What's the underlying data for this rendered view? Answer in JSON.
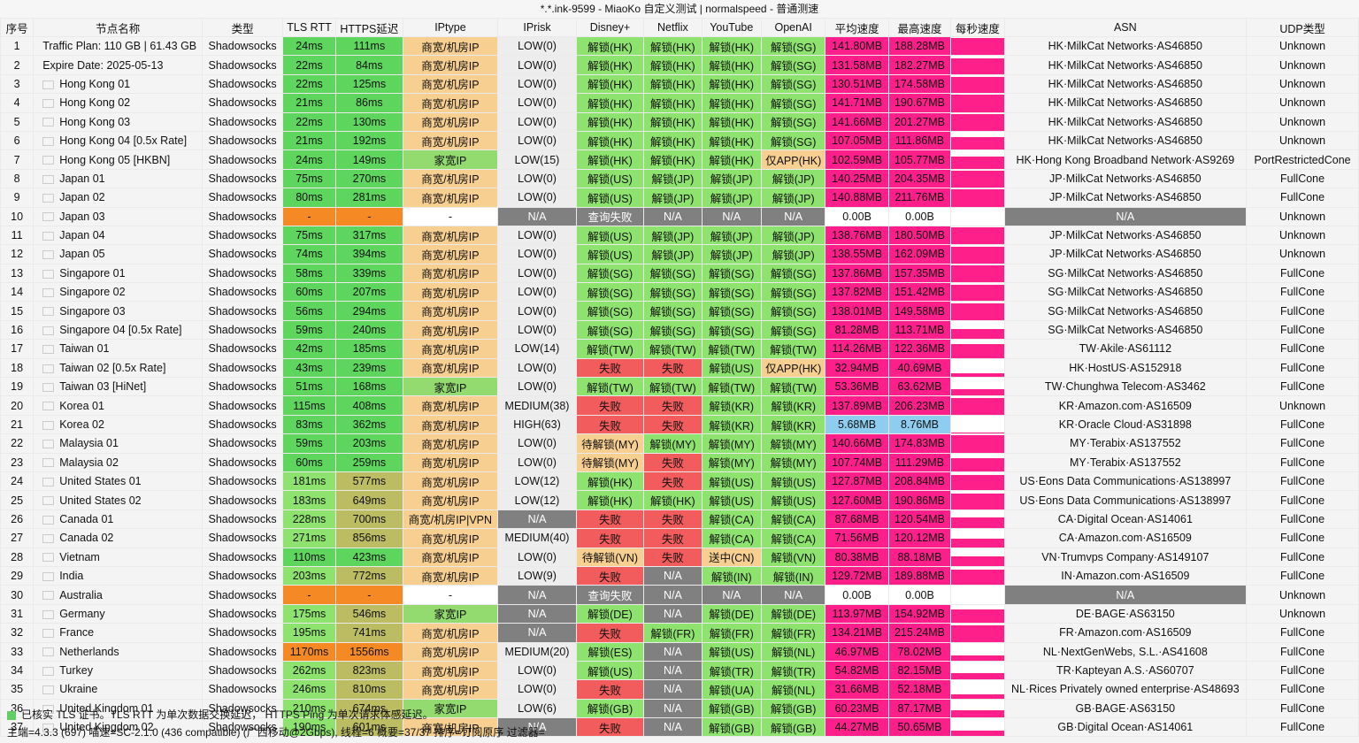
{
  "title": "*.*.ink-9599 - MiaoKo 自定义测试 | normalspeed - 普通测速",
  "columns": [
    "序号",
    "节点名称",
    "类型",
    "TLS RTT",
    "HTTPS延迟",
    "IPtype",
    "IPrisk",
    "Disney+",
    "Netflix",
    "YouTube",
    "OpenAI",
    "平均速度",
    "最高速度",
    "每秒速度",
    "ASN",
    "UDP类型"
  ],
  "rows": [
    {
      "n": "1",
      "name": "Traffic Plan: 110 GB | 61.43 GB",
      "type": "Shadowsocks",
      "tls": "24ms",
      "https": "111ms",
      "iptype": "商宽/机房IP",
      "iprisk": "LOW(0)",
      "disney": "解锁(HK)",
      "netflix": "解锁(HK)",
      "youtube": "解锁(HK)",
      "openai": "解锁(SG)",
      "avg": "141.80MB",
      "max": "188.28MB",
      "asn": "HK·MilkCat Networks·AS46850",
      "udp": "Unknown"
    },
    {
      "n": "2",
      "name": "Expire Date: 2025-05-13",
      "type": "Shadowsocks",
      "tls": "22ms",
      "https": "84ms",
      "iptype": "商宽/机房IP",
      "iprisk": "LOW(0)",
      "disney": "解锁(HK)",
      "netflix": "解锁(HK)",
      "youtube": "解锁(HK)",
      "openai": "解锁(SG)",
      "avg": "131.58MB",
      "max": "182.27MB",
      "asn": "HK·MilkCat Networks·AS46850",
      "udp": "Unknown"
    },
    {
      "n": "3",
      "name": "Hong Kong 01",
      "type": "Shadowsocks",
      "tls": "22ms",
      "https": "125ms",
      "iptype": "商宽/机房IP",
      "iprisk": "LOW(0)",
      "disney": "解锁(HK)",
      "netflix": "解锁(HK)",
      "youtube": "解锁(HK)",
      "openai": "解锁(SG)",
      "avg": "130.51MB",
      "max": "174.58MB",
      "asn": "HK·MilkCat Networks·AS46850",
      "udp": "Unknown"
    },
    {
      "n": "4",
      "name": "Hong Kong 02",
      "type": "Shadowsocks",
      "tls": "21ms",
      "https": "86ms",
      "iptype": "商宽/机房IP",
      "iprisk": "LOW(0)",
      "disney": "解锁(HK)",
      "netflix": "解锁(HK)",
      "youtube": "解锁(HK)",
      "openai": "解锁(SG)",
      "avg": "141.71MB",
      "max": "190.67MB",
      "asn": "HK·MilkCat Networks·AS46850",
      "udp": "Unknown"
    },
    {
      "n": "5",
      "name": "Hong Kong 03",
      "type": "Shadowsocks",
      "tls": "22ms",
      "https": "130ms",
      "iptype": "商宽/机房IP",
      "iprisk": "LOW(0)",
      "disney": "解锁(HK)",
      "netflix": "解锁(HK)",
      "youtube": "解锁(HK)",
      "openai": "解锁(SG)",
      "avg": "141.66MB",
      "max": "201.27MB",
      "asn": "HK·MilkCat Networks·AS46850",
      "udp": "Unknown"
    },
    {
      "n": "6",
      "name": "Hong Kong 04 [0.5x Rate]",
      "type": "Shadowsocks",
      "tls": "21ms",
      "https": "192ms",
      "iptype": "商宽/机房IP",
      "iprisk": "LOW(0)",
      "disney": "解锁(HK)",
      "netflix": "解锁(HK)",
      "youtube": "解锁(HK)",
      "openai": "解锁(SG)",
      "avg": "107.05MB",
      "max": "111.86MB",
      "asn": "HK·MilkCat Networks·AS46850",
      "udp": "Unknown"
    },
    {
      "n": "7",
      "name": "Hong Kong 05 [HKBN]",
      "type": "Shadowsocks",
      "tls": "24ms",
      "https": "149ms",
      "iptype": "家宽IP",
      "iprisk": "LOW(15)",
      "disney": "解锁(HK)",
      "netflix": "解锁(HK)",
      "youtube": "解锁(HK)",
      "openai": "仅APP(HK)",
      "avg": "102.59MB",
      "max": "105.77MB",
      "asn": "HK·Hong Kong Broadband Network·AS9269",
      "udp": "PortRestrictedCone"
    },
    {
      "n": "8",
      "name": "Japan 01",
      "type": "Shadowsocks",
      "tls": "75ms",
      "https": "270ms",
      "iptype": "商宽/机房IP",
      "iprisk": "LOW(0)",
      "disney": "解锁(US)",
      "netflix": "解锁(JP)",
      "youtube": "解锁(JP)",
      "openai": "解锁(JP)",
      "avg": "140.25MB",
      "max": "204.35MB",
      "asn": "JP·MilkCat Networks·AS46850",
      "udp": "FullCone"
    },
    {
      "n": "9",
      "name": "Japan 02",
      "type": "Shadowsocks",
      "tls": "80ms",
      "https": "281ms",
      "iptype": "商宽/机房IP",
      "iprisk": "LOW(0)",
      "disney": "解锁(US)",
      "netflix": "解锁(JP)",
      "youtube": "解锁(JP)",
      "openai": "解锁(JP)",
      "avg": "140.88MB",
      "max": "211.76MB",
      "asn": "JP·MilkCat Networks·AS46850",
      "udp": "FullCone"
    },
    {
      "n": "10",
      "name": "Japan 03",
      "type": "Shadowsocks",
      "tls": "-",
      "https": "-",
      "iptype": "-",
      "iprisk": "N/A",
      "disney": "查询失败",
      "netflix": "N/A",
      "youtube": "N/A",
      "openai": "N/A",
      "avg": "0.00B",
      "max": "0.00B",
      "asn": "N/A",
      "udp": "Unknown"
    },
    {
      "n": "11",
      "name": "Japan 04",
      "type": "Shadowsocks",
      "tls": "75ms",
      "https": "317ms",
      "iptype": "商宽/机房IP",
      "iprisk": "LOW(0)",
      "disney": "解锁(US)",
      "netflix": "解锁(JP)",
      "youtube": "解锁(JP)",
      "openai": "解锁(JP)",
      "avg": "138.76MB",
      "max": "180.50MB",
      "asn": "JP·MilkCat Networks·AS46850",
      "udp": "Unknown"
    },
    {
      "n": "12",
      "name": "Japan 05",
      "type": "Shadowsocks",
      "tls": "74ms",
      "https": "394ms",
      "iptype": "商宽/机房IP",
      "iprisk": "LOW(0)",
      "disney": "解锁(US)",
      "netflix": "解锁(JP)",
      "youtube": "解锁(JP)",
      "openai": "解锁(JP)",
      "avg": "138.55MB",
      "max": "162.09MB",
      "asn": "JP·MilkCat Networks·AS46850",
      "udp": "Unknown"
    },
    {
      "n": "13",
      "name": "Singapore 01",
      "type": "Shadowsocks",
      "tls": "58ms",
      "https": "339ms",
      "iptype": "商宽/机房IP",
      "iprisk": "LOW(0)",
      "disney": "解锁(SG)",
      "netflix": "解锁(SG)",
      "youtube": "解锁(SG)",
      "openai": "解锁(SG)",
      "avg": "137.86MB",
      "max": "157.35MB",
      "asn": "SG·MilkCat Networks·AS46850",
      "udp": "FullCone"
    },
    {
      "n": "14",
      "name": "Singapore 02",
      "type": "Shadowsocks",
      "tls": "60ms",
      "https": "207ms",
      "iptype": "商宽/机房IP",
      "iprisk": "LOW(0)",
      "disney": "解锁(SG)",
      "netflix": "解锁(SG)",
      "youtube": "解锁(SG)",
      "openai": "解锁(SG)",
      "avg": "137.82MB",
      "max": "151.42MB",
      "asn": "SG·MilkCat Networks·AS46850",
      "udp": "FullCone"
    },
    {
      "n": "15",
      "name": "Singapore 03",
      "type": "Shadowsocks",
      "tls": "56ms",
      "https": "294ms",
      "iptype": "商宽/机房IP",
      "iprisk": "LOW(0)",
      "disney": "解锁(SG)",
      "netflix": "解锁(SG)",
      "youtube": "解锁(SG)",
      "openai": "解锁(SG)",
      "avg": "138.01MB",
      "max": "149.58MB",
      "asn": "SG·MilkCat Networks·AS46850",
      "udp": "FullCone"
    },
    {
      "n": "16",
      "name": "Singapore 04 [0.5x Rate]",
      "type": "Shadowsocks",
      "tls": "59ms",
      "https": "240ms",
      "iptype": "商宽/机房IP",
      "iprisk": "LOW(0)",
      "disney": "解锁(SG)",
      "netflix": "解锁(SG)",
      "youtube": "解锁(SG)",
      "openai": "解锁(SG)",
      "avg": "81.28MB",
      "max": "113.71MB",
      "asn": "SG·MilkCat Networks·AS46850",
      "udp": "FullCone"
    },
    {
      "n": "17",
      "name": "Taiwan 01",
      "type": "Shadowsocks",
      "tls": "42ms",
      "https": "185ms",
      "iptype": "商宽/机房IP",
      "iprisk": "LOW(14)",
      "disney": "解锁(TW)",
      "netflix": "解锁(TW)",
      "youtube": "解锁(TW)",
      "openai": "解锁(TW)",
      "avg": "114.26MB",
      "max": "122.36MB",
      "asn": "TW·Akile·AS61112",
      "udp": "FullCone"
    },
    {
      "n": "18",
      "name": "Taiwan 02 [0.5x Rate]",
      "type": "Shadowsocks",
      "tls": "43ms",
      "https": "239ms",
      "iptype": "商宽/机房IP",
      "iprisk": "LOW(0)",
      "disney": "失败",
      "netflix": "失败",
      "youtube": "解锁(US)",
      "openai": "仅APP(HK)",
      "avg": "32.94MB",
      "max": "40.69MB",
      "asn": "HK·HostUS·AS152918",
      "udp": "FullCone"
    },
    {
      "n": "19",
      "name": "Taiwan 03 [HiNet]",
      "type": "Shadowsocks",
      "tls": "51ms",
      "https": "168ms",
      "iptype": "家宽IP",
      "iprisk": "LOW(0)",
      "disney": "解锁(TW)",
      "netflix": "解锁(TW)",
      "youtube": "解锁(TW)",
      "openai": "解锁(TW)",
      "avg": "53.36MB",
      "max": "63.62MB",
      "asn": "TW·Chunghwa Telecom·AS3462",
      "udp": "FullCone"
    },
    {
      "n": "20",
      "name": "Korea 01",
      "type": "Shadowsocks",
      "tls": "115ms",
      "https": "408ms",
      "iptype": "商宽/机房IP",
      "iprisk": "MEDIUM(38)",
      "disney": "失败",
      "netflix": "失败",
      "youtube": "解锁(KR)",
      "openai": "解锁(KR)",
      "avg": "137.89MB",
      "max": "206.23MB",
      "asn": "KR·Amazon.com·AS16509",
      "udp": "Unknown"
    },
    {
      "n": "21",
      "name": "Korea 02",
      "type": "Shadowsocks",
      "tls": "83ms",
      "https": "362ms",
      "iptype": "商宽/机房IP",
      "iprisk": "HIGH(63)",
      "disney": "失败",
      "netflix": "失败",
      "youtube": "解锁(KR)",
      "openai": "解锁(KR)",
      "avg": "5.68MB",
      "max": "8.76MB",
      "asn": "KR·Oracle Cloud·AS31898",
      "udp": "FullCone"
    },
    {
      "n": "22",
      "name": "Malaysia 01",
      "type": "Shadowsocks",
      "tls": "59ms",
      "https": "203ms",
      "iptype": "商宽/机房IP",
      "iprisk": "LOW(0)",
      "disney": "待解锁(MY)",
      "netflix": "解锁(MY)",
      "youtube": "解锁(MY)",
      "openai": "解锁(MY)",
      "avg": "140.66MB",
      "max": "174.83MB",
      "asn": "MY·Terabix·AS137552",
      "udp": "FullCone"
    },
    {
      "n": "23",
      "name": "Malaysia 02",
      "type": "Shadowsocks",
      "tls": "60ms",
      "https": "259ms",
      "iptype": "商宽/机房IP",
      "iprisk": "LOW(0)",
      "disney": "待解锁(MY)",
      "netflix": "失败",
      "youtube": "解锁(MY)",
      "openai": "解锁(MY)",
      "avg": "107.74MB",
      "max": "111.29MB",
      "asn": "MY·Terabix·AS137552",
      "udp": "FullCone"
    },
    {
      "n": "24",
      "name": "United States 01",
      "type": "Shadowsocks",
      "tls": "181ms",
      "https": "577ms",
      "iptype": "商宽/机房IP",
      "iprisk": "LOW(12)",
      "disney": "解锁(HK)",
      "netflix": "失败",
      "youtube": "解锁(US)",
      "openai": "解锁(US)",
      "avg": "127.87MB",
      "max": "208.84MB",
      "asn": "US·Eons Data Communications·AS138997",
      "udp": "FullCone"
    },
    {
      "n": "25",
      "name": "United States 02",
      "type": "Shadowsocks",
      "tls": "183ms",
      "https": "649ms",
      "iptype": "商宽/机房IP",
      "iprisk": "LOW(12)",
      "disney": "解锁(HK)",
      "netflix": "解锁(HK)",
      "youtube": "解锁(US)",
      "openai": "解锁(US)",
      "avg": "127.60MB",
      "max": "190.86MB",
      "asn": "US·Eons Data Communications·AS138997",
      "udp": "FullCone"
    },
    {
      "n": "26",
      "name": "Canada 01",
      "type": "Shadowsocks",
      "tls": "228ms",
      "https": "700ms",
      "iptype": "商宽/机房IP|VPN",
      "iprisk": "N/A",
      "disney": "失败",
      "netflix": "失败",
      "youtube": "解锁(CA)",
      "openai": "解锁(CA)",
      "avg": "87.68MB",
      "max": "120.54MB",
      "asn": "CA·Digital Ocean·AS14061",
      "udp": "FullCone"
    },
    {
      "n": "27",
      "name": "Canada 02",
      "type": "Shadowsocks",
      "tls": "271ms",
      "https": "856ms",
      "iptype": "商宽/机房IP",
      "iprisk": "MEDIUM(40)",
      "disney": "失败",
      "netflix": "失败",
      "youtube": "解锁(CA)",
      "openai": "解锁(CA)",
      "avg": "71.56MB",
      "max": "120.12MB",
      "asn": "CA·Amazon.com·AS16509",
      "udp": "FullCone"
    },
    {
      "n": "28",
      "name": "Vietnam",
      "type": "Shadowsocks",
      "tls": "110ms",
      "https": "423ms",
      "iptype": "商宽/机房IP",
      "iprisk": "LOW(0)",
      "disney": "待解锁(VN)",
      "netflix": "失败",
      "youtube": "送中(CN)",
      "openai": "解锁(VN)",
      "avg": "80.38MB",
      "max": "88.18MB",
      "asn": "VN·Trumvps Company·AS149107",
      "udp": "FullCone"
    },
    {
      "n": "29",
      "name": "India",
      "type": "Shadowsocks",
      "tls": "203ms",
      "https": "772ms",
      "iptype": "商宽/机房IP",
      "iprisk": "LOW(9)",
      "disney": "失败",
      "netflix": "N/A",
      "youtube": "解锁(IN)",
      "openai": "解锁(IN)",
      "avg": "129.72MB",
      "max": "189.88MB",
      "asn": "IN·Amazon.com·AS16509",
      "udp": "FullCone"
    },
    {
      "n": "30",
      "name": "Australia",
      "type": "Shadowsocks",
      "tls": "-",
      "https": "-",
      "iptype": "-",
      "iprisk": "N/A",
      "disney": "查询失败",
      "netflix": "N/A",
      "youtube": "N/A",
      "openai": "N/A",
      "avg": "0.00B",
      "max": "0.00B",
      "asn": "N/A",
      "udp": "Unknown"
    },
    {
      "n": "31",
      "name": "Germany",
      "type": "Shadowsocks",
      "tls": "175ms",
      "https": "546ms",
      "iptype": "家宽IP",
      "iprisk": "N/A",
      "disney": "解锁(DE)",
      "netflix": "N/A",
      "youtube": "解锁(DE)",
      "openai": "解锁(DE)",
      "avg": "113.97MB",
      "max": "154.92MB",
      "asn": "DE·BAGE·AS63150",
      "udp": "Unknown"
    },
    {
      "n": "32",
      "name": "France",
      "type": "Shadowsocks",
      "tls": "195ms",
      "https": "741ms",
      "iptype": "商宽/机房IP",
      "iprisk": "N/A",
      "disney": "失败",
      "netflix": "解锁(FR)",
      "youtube": "解锁(FR)",
      "openai": "解锁(FR)",
      "avg": "134.21MB",
      "max": "215.24MB",
      "asn": "FR·Amazon.com·AS16509",
      "udp": "FullCone"
    },
    {
      "n": "33",
      "name": "Netherlands",
      "type": "Shadowsocks",
      "tls": "1170ms",
      "https": "1556ms",
      "iptype": "商宽/机房IP",
      "iprisk": "MEDIUM(20)",
      "disney": "解锁(ES)",
      "netflix": "N/A",
      "youtube": "解锁(US)",
      "openai": "解锁(NL)",
      "avg": "46.97MB",
      "max": "78.02MB",
      "asn": "NL·NextGenWebs, S.L.·AS41608",
      "udp": "FullCone"
    },
    {
      "n": "34",
      "name": "Turkey",
      "type": "Shadowsocks",
      "tls": "262ms",
      "https": "823ms",
      "iptype": "商宽/机房IP",
      "iprisk": "LOW(0)",
      "disney": "解锁(US)",
      "netflix": "N/A",
      "youtube": "解锁(TR)",
      "openai": "解锁(TR)",
      "avg": "54.82MB",
      "max": "82.15MB",
      "asn": "TR·Kapteyan A.S.·AS60707",
      "udp": "FullCone"
    },
    {
      "n": "35",
      "name": "Ukraine",
      "type": "Shadowsocks",
      "tls": "246ms",
      "https": "810ms",
      "iptype": "商宽/机房IP",
      "iprisk": "LOW(0)",
      "disney": "失败",
      "netflix": "N/A",
      "youtube": "解锁(UA)",
      "openai": "解锁(NL)",
      "avg": "31.66MB",
      "max": "52.18MB",
      "asn": "NL·Rices Privately owned enterprise·AS48693",
      "udp": "FullCone"
    },
    {
      "n": "36",
      "name": "United Kingdom 01",
      "type": "Shadowsocks",
      "tls": "210ms",
      "https": "674ms",
      "iptype": "家宽IP",
      "iprisk": "LOW(6)",
      "disney": "解锁(GB)",
      "netflix": "N/A",
      "youtube": "解锁(GB)",
      "openai": "解锁(GB)",
      "avg": "60.23MB",
      "max": "87.17MB",
      "asn": "GB·BAGE·AS63150",
      "udp": "FullCone"
    },
    {
      "n": "37",
      "name": "United Kingdom 02",
      "type": "Shadowsocks",
      "tls": "190ms",
      "https": "601ms",
      "iptype": "商宽/机房IP",
      "iprisk": "N/A",
      "disney": "失败",
      "netflix": "N/A",
      "youtube": "解锁(GB)",
      "openai": "解锁(GB)",
      "avg": "44.27MB",
      "max": "50.65MB",
      "asn": "GB·Digital Ocean·AS14061",
      "udp": "FullCone"
    }
  ],
  "footer": {
    "line1": "已核实 TLS 证书。TLS RTT 为单次数据交换延迟， HTTPS Ping 为单次请求体感延迟。",
    "line2": "主端=4.3.3 (697) 喵速=SC-2.1.0 (436 compatible) (广西移动@2Gbps), 线程=6 概要=37/37 排序=订阅原序 过滤器="
  }
}
